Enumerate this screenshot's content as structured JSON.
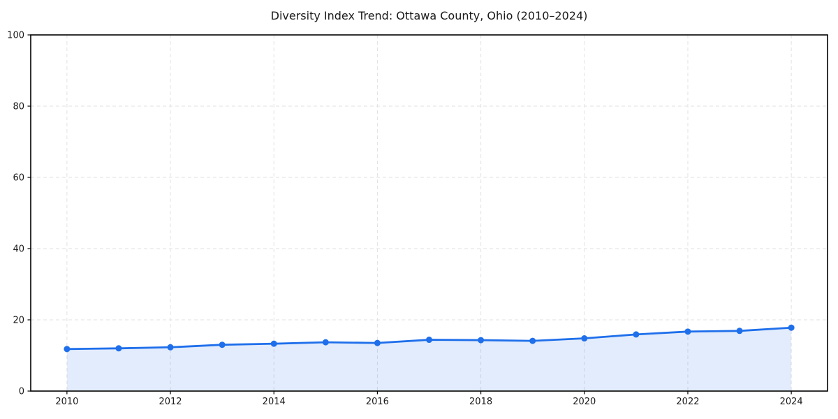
{
  "page": {
    "background": "#ffffff"
  },
  "chart_data": {
    "type": "line",
    "title": "Diversity Index Trend: Ottawa County, Ohio (2010–2024)",
    "xlabel": "",
    "ylabel": "",
    "x": [
      2010,
      2011,
      2012,
      2013,
      2014,
      2015,
      2016,
      2017,
      2018,
      2019,
      2020,
      2021,
      2022,
      2023,
      2024
    ],
    "series": [
      {
        "name": "Diversity Index",
        "values": [
          11.8,
          12.0,
          12.3,
          13.0,
          13.3,
          13.7,
          13.5,
          14.4,
          14.3,
          14.1,
          14.8,
          15.9,
          16.7,
          16.9,
          17.8
        ],
        "line_color": "#1f6feb",
        "marker": "circle",
        "marker_color": "#1f6feb",
        "area_fill": "rgba(31,111,235,0.13)"
      }
    ],
    "xlim": [
      2009.3,
      2024.7
    ],
    "ylim": [
      0,
      100
    ],
    "xticks": [
      2010,
      2012,
      2014,
      2016,
      2018,
      2020,
      2022,
      2024
    ],
    "yticks": [
      0,
      20,
      40,
      60,
      80,
      100
    ],
    "grid": {
      "visible": true,
      "style": "dashed",
      "color": "#e2e2e2"
    },
    "legend": {
      "visible": false
    },
    "axis_color": "#000000",
    "text_color": "#1a1a1a"
  }
}
